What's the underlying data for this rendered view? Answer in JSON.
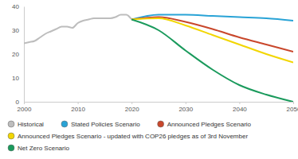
{
  "chart_data": {
    "type": "line",
    "x": [
      2000,
      2001,
      2002,
      2003,
      2004,
      2005,
      2006,
      2007,
      2008,
      2009,
      2010,
      2011,
      2012,
      2013,
      2014,
      2015,
      2016,
      2017,
      2018,
      2019,
      2020,
      2025,
      2030,
      2035,
      2040,
      2045,
      2050
    ],
    "xlim": [
      2000,
      2050
    ],
    "xticks": [
      2000,
      2010,
      2020,
      2030,
      2040,
      2050
    ],
    "ylim": [
      0,
      40
    ],
    "yticks": [
      0,
      10,
      20,
      30,
      40
    ],
    "grid": false,
    "legend": "bottom",
    "marker": "none",
    "series": [
      {
        "name": "Historical",
        "color": "#bdbdbd",
        "values": [
          24.5,
          25,
          25.5,
          27,
          28.5,
          29.5,
          30.5,
          31.5,
          31.5,
          31,
          33,
          34,
          34.5,
          35,
          35,
          35,
          35,
          35.5,
          36.5,
          36.5,
          34.5,
          null,
          null,
          null,
          null,
          null,
          null
        ]
      },
      {
        "name": "Stated Policies Scenario",
        "color": "#29a3d6",
        "values": [
          null,
          null,
          null,
          null,
          null,
          null,
          null,
          null,
          null,
          null,
          null,
          null,
          null,
          null,
          null,
          null,
          null,
          null,
          null,
          null,
          34.5,
          36.5,
          36.5,
          36,
          35.5,
          35,
          34
        ]
      },
      {
        "name": "Announced Pledges Scenario",
        "color": "#c9472b",
        "values": [
          null,
          null,
          null,
          null,
          null,
          null,
          null,
          null,
          null,
          null,
          null,
          null,
          null,
          null,
          null,
          null,
          null,
          null,
          null,
          null,
          34.5,
          35.5,
          33.5,
          30.5,
          27,
          24,
          21
        ]
      },
      {
        "name": "Announced Pledges Scenario - updated with COP26 pledges as of 3rd November",
        "color": "#f2d600",
        "values": [
          null,
          null,
          null,
          null,
          null,
          null,
          null,
          null,
          null,
          null,
          null,
          null,
          null,
          null,
          null,
          null,
          null,
          null,
          null,
          null,
          34.5,
          35,
          32,
          28,
          24,
          20,
          16.5
        ]
      },
      {
        "name": "Net Zero Scenario",
        "color": "#1a9a5c",
        "values": [
          null,
          null,
          null,
          null,
          null,
          null,
          null,
          null,
          null,
          null,
          null,
          null,
          null,
          null,
          null,
          null,
          null,
          null,
          null,
          null,
          34.5,
          30,
          21.5,
          13.5,
          7,
          3,
          0
        ]
      }
    ]
  }
}
